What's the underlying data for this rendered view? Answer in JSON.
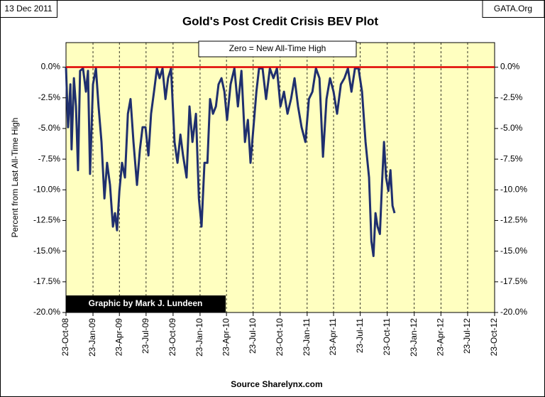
{
  "chart_data": {
    "type": "line",
    "title": "Gold's Post Credit Crisis BEV Plot",
    "date_stamp": "13 Dec 2011",
    "site": "GATA.Org",
    "annotation": "Zero = New All-Time High",
    "credit": "Graphic by Mark J. Lundeen",
    "source": "Source Sharelynx.com",
    "y_label": "Percent from Last All-Time High",
    "xlim": [
      "2008-10-23",
      "2012-10-23"
    ],
    "xticks": [
      {
        "value": "2008-10-23",
        "label": "23-Oct-08"
      },
      {
        "value": "2009-01-23",
        "label": "23-Jan-09"
      },
      {
        "value": "2009-04-23",
        "label": "23-Apr-09"
      },
      {
        "value": "2009-07-23",
        "label": "23-Jul-09"
      },
      {
        "value": "2009-10-23",
        "label": "23-Oct-09"
      },
      {
        "value": "2010-01-23",
        "label": "23-Jan-10"
      },
      {
        "value": "2010-04-23",
        "label": "23-Apr-10"
      },
      {
        "value": "2010-07-23",
        "label": "23-Jul-10"
      },
      {
        "value": "2010-10-23",
        "label": "23-Oct-10"
      },
      {
        "value": "2011-01-23",
        "label": "23-Jan-11"
      },
      {
        "value": "2011-04-23",
        "label": "23-Apr-11"
      },
      {
        "value": "2011-07-23",
        "label": "23-Jul-11"
      },
      {
        "value": "2011-10-23",
        "label": "23-Oct-11"
      },
      {
        "value": "2012-01-23",
        "label": "23-Jan-12"
      },
      {
        "value": "2012-04-23",
        "label": "23-Apr-12"
      },
      {
        "value": "2012-07-23",
        "label": "23-Jul-12"
      },
      {
        "value": "2012-10-23",
        "label": "23-Oct-12"
      }
    ],
    "ylim": [
      -20,
      2
    ],
    "yticks": [
      {
        "value": 0,
        "label": "0.0%"
      },
      {
        "value": -2.5,
        "label": "-2.5%"
      },
      {
        "value": -5,
        "label": "-5.0%"
      },
      {
        "value": -7.5,
        "label": "-7.5%"
      },
      {
        "value": -10,
        "label": "-10.0%"
      },
      {
        "value": -12.5,
        "label": "-12.5%"
      },
      {
        "value": -15,
        "label": "-15.0%"
      },
      {
        "value": -17.5,
        "label": "-17.5%"
      },
      {
        "value": -20,
        "label": "-20.0%"
      }
    ],
    "y2lim": [
      -20,
      2
    ],
    "y2ticks": [
      {
        "value": 0,
        "label": "0.0%"
      },
      {
        "value": -2.5,
        "label": "-2.5%"
      },
      {
        "value": -5,
        "label": "-5.0%"
      },
      {
        "value": -7.5,
        "label": "-7.5%"
      },
      {
        "value": -10,
        "label": "-10.0%"
      },
      {
        "value": -12.5,
        "label": "-12.5%"
      },
      {
        "value": -15,
        "label": "-15.0%"
      },
      {
        "value": -17.5,
        "label": "-17.5%"
      },
      {
        "value": -20,
        "label": "-20.0%"
      }
    ],
    "reference_line": {
      "value": 0,
      "color": "#e00000"
    },
    "background": "#ffffc0",
    "x": [
      "2008-10-23",
      "2008-10-30",
      "2008-11-07",
      "2008-11-11",
      "2008-11-19",
      "2008-11-26",
      "2008-12-03",
      "2008-12-10",
      "2008-12-20",
      "2008-12-30",
      "2009-01-06",
      "2009-01-13",
      "2009-01-23",
      "2009-02-02",
      "2009-02-11",
      "2009-02-21",
      "2009-03-03",
      "2009-03-12",
      "2009-03-22",
      "2009-04-01",
      "2009-04-08",
      "2009-04-15",
      "2009-04-23",
      "2009-05-02",
      "2009-05-12",
      "2009-05-22",
      "2009-05-31",
      "2009-06-10",
      "2009-06-22",
      "2009-07-02",
      "2009-07-11",
      "2009-07-21",
      "2009-07-31",
      "2009-08-09",
      "2009-08-19",
      "2009-08-29",
      "2009-09-07",
      "2009-09-17",
      "2009-09-27",
      "2009-10-06",
      "2009-10-16",
      "2009-10-28",
      "2009-11-07",
      "2009-11-17",
      "2009-11-26",
      "2009-12-08",
      "2009-12-18",
      "2009-12-28",
      "2010-01-09",
      "2010-01-19",
      "2010-01-28",
      "2010-02-07",
      "2010-02-17",
      "2010-02-26",
      "2010-03-08",
      "2010-03-18",
      "2010-03-27",
      "2010-04-06",
      "2010-04-16",
      "2010-04-25",
      "2010-05-07",
      "2010-05-20",
      "2010-06-01",
      "2010-06-13",
      "2010-06-25",
      "2010-07-05",
      "2010-07-14",
      "2010-07-24",
      "2010-08-03",
      "2010-08-12",
      "2010-08-24",
      "2010-09-05",
      "2010-09-18",
      "2010-09-30",
      "2010-10-12",
      "2010-10-24",
      "2010-11-05",
      "2010-11-17",
      "2010-11-29",
      "2010-12-11",
      "2010-12-23",
      "2011-01-04",
      "2011-01-17",
      "2011-01-29",
      "2011-02-10",
      "2011-02-22",
      "2011-03-06",
      "2011-03-18",
      "2011-03-30",
      "2011-04-11",
      "2011-04-23",
      "2011-05-05",
      "2011-05-18",
      "2011-05-30",
      "2011-06-11",
      "2011-06-23",
      "2011-07-05",
      "2011-07-17",
      "2011-07-29",
      "2011-08-10",
      "2011-08-22",
      "2011-08-30",
      "2011-09-06",
      "2011-09-13",
      "2011-09-20",
      "2011-09-28",
      "2011-10-05",
      "2011-10-12",
      "2011-10-19",
      "2011-10-27",
      "2011-11-03",
      "2011-11-10",
      "2011-11-17"
    ],
    "series": [
      {
        "name": "BEV",
        "color": "#1f2f6e",
        "values": [
          0,
          -4.9,
          -1.4,
          -6.7,
          -0.9,
          -3.2,
          -8.4,
          -0.3,
          -0.1,
          -2.0,
          -0.3,
          -8.7,
          -1.4,
          -0.1,
          -3.2,
          -6.1,
          -10.7,
          -7.8,
          -9.6,
          -13.0,
          -11.9,
          -13.3,
          -10.1,
          -7.8,
          -9.0,
          -3.8,
          -2.6,
          -6.1,
          -9.6,
          -6.7,
          -4.9,
          -4.9,
          -7.2,
          -3.8,
          -2.0,
          -0.1,
          -0.9,
          -0.1,
          -2.6,
          -0.9,
          -0.1,
          -6.1,
          -7.8,
          -5.5,
          -7.2,
          -9.0,
          -3.2,
          -6.1,
          -3.8,
          -10.7,
          -13.0,
          -7.8,
          -7.8,
          -2.6,
          -3.8,
          -3.2,
          -1.4,
          -0.9,
          -2.0,
          -4.3,
          -1.4,
          -0.1,
          -3.2,
          -0.3,
          -6.1,
          -4.3,
          -7.8,
          -4.9,
          -2.0,
          -0.1,
          -0.1,
          -2.6,
          -0.1,
          -0.9,
          -0.1,
          -3.2,
          -2.0,
          -3.8,
          -2.6,
          -0.9,
          -3.2,
          -4.9,
          -6.1,
          -2.6,
          -2.0,
          -0.1,
          -0.9,
          -7.3,
          -2.6,
          -0.9,
          -2.0,
          -3.8,
          -1.4,
          -0.9,
          -0.1,
          -2.0,
          -0.1,
          -0.1,
          -2.0,
          -6.1,
          -9.0,
          -14.2,
          -15.4,
          -11.9,
          -13.0,
          -13.6,
          -9.6,
          -6.1,
          -9.0,
          -10.1,
          -8.4,
          -11.3,
          -11.9
        ]
      }
    ]
  }
}
